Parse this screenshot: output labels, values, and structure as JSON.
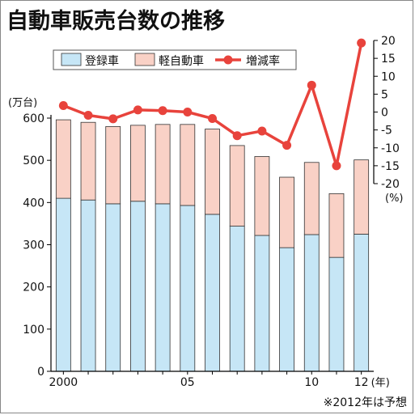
{
  "title": "自動車販売台数の推移",
  "footnote": "※2012年は予想",
  "colors": {
    "registered": "#c6e6f6",
    "kei": "#f9d1c6",
    "rate": "#e8433c",
    "axis": "#000000"
  },
  "chart_data": {
    "type": "bar",
    "stacked": true,
    "categories": [
      "2000",
      "2001",
      "2002",
      "2003",
      "2004",
      "2005",
      "2006",
      "2007",
      "2008",
      "2009",
      "2010",
      "2011",
      "2012"
    ],
    "x_tick_labels": [
      "2000",
      "05",
      "10",
      "12"
    ],
    "x_tick_index": [
      0,
      5,
      10,
      12
    ],
    "x_unit": "(年)",
    "series": [
      {
        "name": "登録車",
        "values": [
          410,
          406,
          397,
          403,
          397,
          393,
          372,
          344,
          322,
          293,
          324,
          270,
          325
        ]
      },
      {
        "name": "軽自動車",
        "values": [
          186,
          184,
          183,
          180,
          188,
          192,
          202,
          191,
          187,
          167,
          171,
          151,
          176
        ]
      }
    ],
    "line_series": {
      "name": "増減率",
      "values": [
        1.8,
        -0.9,
        -1.9,
        0.6,
        0.4,
        0.0,
        -1.8,
        -6.6,
        -5.3,
        -9.3,
        7.5,
        -15.0,
        19.3
      ]
    },
    "y_left": {
      "label": "(万台)",
      "lim": [
        0,
        600
      ],
      "ticks": [
        0,
        100,
        200,
        300,
        400,
        500,
        600
      ]
    },
    "y_right": {
      "label": "(%)",
      "lim": [
        -20,
        20
      ],
      "ticks": [
        20,
        15,
        10,
        5,
        0,
        -5,
        -10,
        -15,
        -20
      ]
    },
    "legend": {
      "position": "top"
    }
  }
}
